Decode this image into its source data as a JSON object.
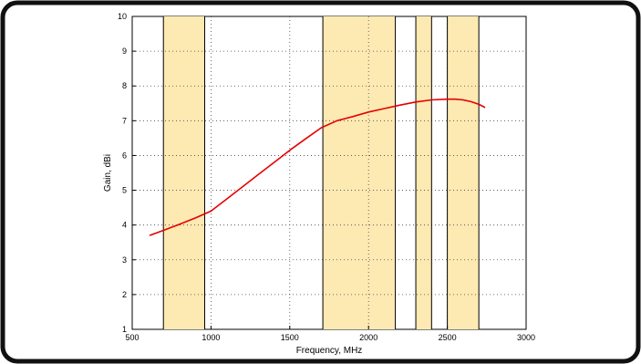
{
  "chart_data": {
    "type": "line",
    "title": "",
    "xlabel": "Frequency, MHz",
    "ylabel": "Gain, dBi",
    "xlim": [
      500,
      3000
    ],
    "ylim": [
      1,
      10
    ],
    "xticks": [
      500,
      1000,
      1500,
      2000,
      2500,
      3000
    ],
    "yticks": [
      1,
      2,
      3,
      4,
      5,
      6,
      7,
      8,
      9,
      10
    ],
    "grid": true,
    "legend": "none",
    "band_color": "#fde9b2",
    "series_color": "#e60000",
    "bands": [
      [
        698,
        960
      ],
      [
        1710,
        2170
      ],
      [
        2300,
        2400
      ],
      [
        2500,
        2700
      ]
    ],
    "series": [
      {
        "x": [
          610,
          700,
          800,
          900,
          1000,
          1100,
          1200,
          1300,
          1400,
          1500,
          1600,
          1700,
          1800,
          1900,
          2000,
          2100,
          2200,
          2300,
          2400,
          2500,
          2550,
          2600,
          2650,
          2700,
          2740
        ],
        "values": [
          3.7,
          3.85,
          4.02,
          4.2,
          4.4,
          4.75,
          5.1,
          5.45,
          5.8,
          6.15,
          6.48,
          6.8,
          7.0,
          7.12,
          7.25,
          7.35,
          7.45,
          7.54,
          7.6,
          7.62,
          7.62,
          7.6,
          7.55,
          7.47,
          7.38
        ]
      }
    ]
  }
}
